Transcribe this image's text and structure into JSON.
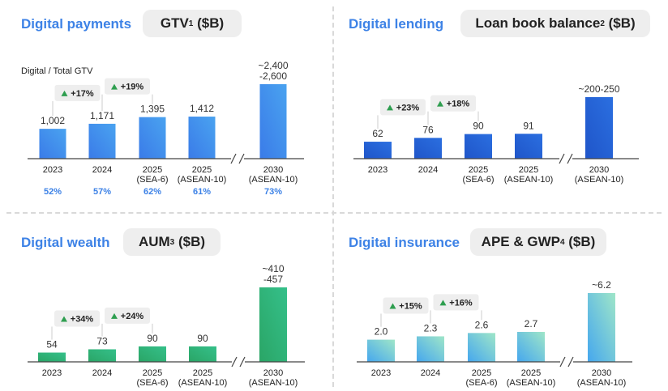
{
  "panels": [
    {
      "title": "Digital payments",
      "metric": "GTV",
      "footnote": "1",
      "unit": "($B)",
      "sublabel": "Digital / Total GTV",
      "gradient": [
        "#3a7be8",
        "#4aa3f0"
      ],
      "chart_data": {
        "type": "bar",
        "categories": [
          "2023",
          "2024",
          "2025\n(SEA-6)",
          "2025\n(ASEAN-10)",
          "2030\n(ASEAN-10)"
        ],
        "values": [
          1002,
          1171,
          1395,
          1412,
          2500
        ],
        "value_labels": [
          "1,002",
          "1,171",
          "1,395",
          "1,412",
          "~2,400\n-2,600"
        ],
        "growth": [
          {
            "from": 0,
            "to": 1,
            "label": "+17%"
          },
          {
            "from": 1,
            "to": 2,
            "label": "+19%"
          }
        ],
        "footer": [
          "52%",
          "57%",
          "62%",
          "61%",
          "73%"
        ],
        "axis_break": true
      }
    },
    {
      "title": "Digital lending",
      "metric": "Loan book balance",
      "footnote": "2",
      "unit": "($B)",
      "sublabel": "",
      "gradient": [
        "#1f55c9",
        "#2b6fe0"
      ],
      "chart_data": {
        "type": "bar",
        "categories": [
          "2023",
          "2024",
          "2025\n(SEA-6)",
          "2025\n(ASEAN-10)",
          "2030\n(ASEAN-10)"
        ],
        "values": [
          62,
          76,
          90,
          91,
          225
        ],
        "value_labels": [
          "62",
          "76",
          "90",
          "91",
          "~200-250"
        ],
        "growth": [
          {
            "from": 0,
            "to": 1,
            "label": "+23%"
          },
          {
            "from": 1,
            "to": 2,
            "label": "+18%"
          }
        ],
        "footer": [],
        "axis_break": true
      }
    },
    {
      "title": "Digital wealth",
      "metric": "AUM",
      "footnote": "3",
      "unit": "($B)",
      "sublabel": "",
      "gradient": [
        "#2aa566",
        "#35c08a"
      ],
      "chart_data": {
        "type": "bar",
        "categories": [
          "2023",
          "2024",
          "2025\n(SEA-6)",
          "2025\n(ASEAN-10)",
          "2030\n(ASEAN-10)"
        ],
        "values": [
          54,
          73,
          90,
          90,
          433
        ],
        "value_labels": [
          "54",
          "73",
          "90",
          "90",
          "~410\n-457"
        ],
        "growth": [
          {
            "from": 0,
            "to": 1,
            "label": "+34%"
          },
          {
            "from": 1,
            "to": 2,
            "label": "+24%"
          }
        ],
        "footer": [],
        "axis_break": true
      }
    },
    {
      "title": "Digital insurance",
      "metric": "APE & GWP",
      "footnote": "4",
      "unit": "($B)",
      "sublabel": "",
      "gradient": [
        "#45a7ee",
        "#9fe6c8"
      ],
      "chart_data": {
        "type": "bar",
        "categories": [
          "2023",
          "2024",
          "2025\n(SEA-6)",
          "2025\n(ASEAN-10)",
          "2030\n(ASEAN-10)"
        ],
        "values": [
          2.0,
          2.3,
          2.6,
          2.7,
          6.2
        ],
        "value_labels": [
          "2.0",
          "2.3",
          "2.6",
          "2.7",
          "~6.2"
        ],
        "growth": [
          {
            "from": 0,
            "to": 1,
            "label": "+15%"
          },
          {
            "from": 1,
            "to": 2,
            "label": "+16%"
          }
        ],
        "footer": [],
        "axis_break": true
      }
    }
  ],
  "colors": {
    "title": "#3d82e6",
    "footer": "#3d82e6",
    "up_arrow": "#2e9e4f",
    "callout_bg": "#eeeeee",
    "axis": "#444444"
  }
}
